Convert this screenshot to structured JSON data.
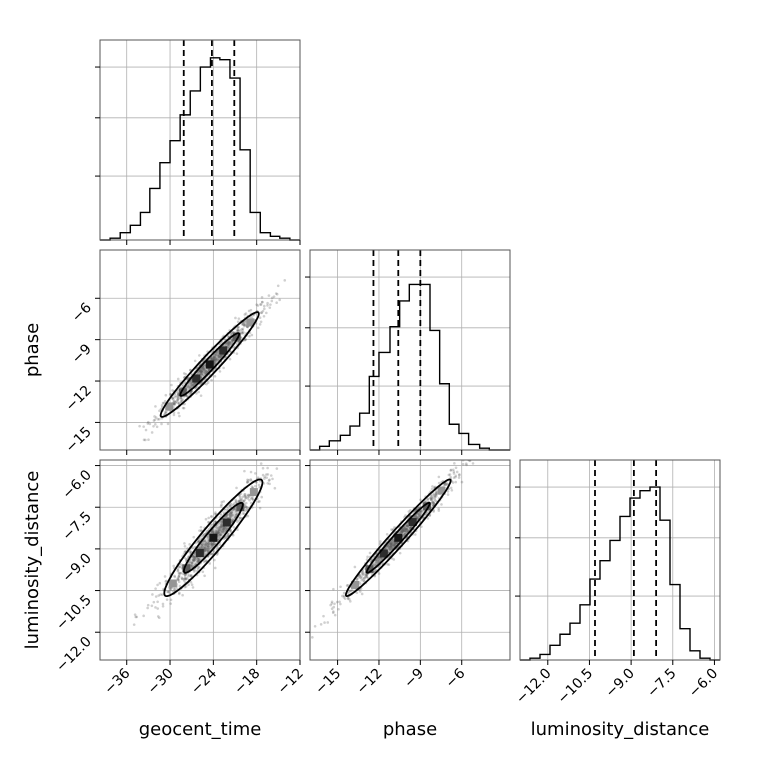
{
  "chart_data": {
    "type": "corner",
    "parameters": [
      "geocent_time",
      "phase",
      "luminosity_distance"
    ],
    "xlabels": [
      "geocent_time",
      "phase",
      "luminosity_distance"
    ],
    "ylabels": [
      "",
      "phase",
      "luminosity_distance"
    ],
    "ranges": {
      "geocent_time": [
        -39.7,
        -12.0
      ],
      "phase": [
        -17.0,
        -2.5
      ],
      "luminosity_distance": [
        -13.0,
        -5.8
      ]
    },
    "ticks": {
      "geocent_time": [
        -36,
        -30,
        -24,
        -18,
        -12
      ],
      "phase": [
        -15,
        -12,
        -9,
        -6
      ],
      "luminosity_distance": [
        -12.0,
        -10.5,
        -9.0,
        -7.5,
        -6.0
      ]
    },
    "tick_labels": {
      "geocent_time": [
        "−36",
        "−30",
        "−24",
        "−18",
        "−12"
      ],
      "phase": [
        "−15",
        "−12",
        "−9",
        "−6"
      ],
      "luminosity_distance": [
        "−12.0",
        "−10.5",
        "−9.0",
        "−7.5",
        "−6.0"
      ]
    },
    "quantiles": {
      "geocent_time": [
        -28.1,
        -24.2,
        -21.1
      ],
      "phase": [
        -12.4,
        -10.6,
        -9.0
      ],
      "luminosity_distance": [
        -10.3,
        -8.9,
        -8.1
      ]
    },
    "histograms": {
      "geocent_time": {
        "edges": [
          -39.7,
          -38.3,
          -36.9,
          -35.5,
          -34.1,
          -32.8,
          -31.4,
          -30.0,
          -28.6,
          -27.2,
          -25.8,
          -24.4,
          -23.1,
          -21.7,
          -20.3,
          -18.9,
          -17.5,
          -16.1,
          -14.8,
          -13.4,
          -12.0
        ],
        "counts": [
          0.0,
          0.01,
          0.04,
          0.08,
          0.15,
          0.28,
          0.42,
          0.54,
          0.68,
          0.81,
          0.94,
          0.99,
          0.98,
          0.88,
          0.49,
          0.15,
          0.04,
          0.02,
          0.01,
          0.0
        ]
      },
      "phase": {
        "edges": [
          -17.0,
          -16.3,
          -15.6,
          -14.8,
          -14.1,
          -13.4,
          -12.7,
          -12.0,
          -11.2,
          -10.5,
          -9.8,
          -9.1,
          -8.3,
          -7.6,
          -6.9,
          -6.2,
          -5.5,
          -4.7,
          -4.0,
          -3.3,
          -2.5
        ],
        "counts": [
          0.0,
          0.02,
          0.05,
          0.08,
          0.13,
          0.2,
          0.4,
          0.53,
          0.67,
          0.81,
          0.9,
          0.9,
          0.65,
          0.36,
          0.14,
          0.09,
          0.03,
          0.01,
          0.0,
          0.0
        ]
      },
      "luminosity_distance": {
        "edges": [
          -13.0,
          -12.64,
          -12.28,
          -11.92,
          -11.56,
          -11.2,
          -10.84,
          -10.48,
          -10.12,
          -9.76,
          -9.4,
          -9.04,
          -8.68,
          -8.32,
          -7.96,
          -7.6,
          -7.24,
          -6.88,
          -6.52,
          -6.16,
          -5.8
        ],
        "counts": [
          0.0,
          0.01,
          0.03,
          0.08,
          0.14,
          0.2,
          0.3,
          0.44,
          0.54,
          0.65,
          0.78,
          0.88,
          0.92,
          0.94,
          0.76,
          0.41,
          0.17,
          0.05,
          0.01,
          0.0
        ]
      }
    },
    "contours_2d": {
      "phase_vs_geocent_time": {
        "center": [
          -24.5,
          -10.8
        ],
        "sigma": [
          3.4,
          1.9
        ],
        "correlation": 0.97
      },
      "luminosity_distance_vs_geocent_time": {
        "center": [
          -24.0,
          -8.6
        ],
        "sigma": [
          3.4,
          1.05
        ],
        "correlation": 0.95
      },
      "luminosity_distance_vs_phase": {
        "center": [
          -10.6,
          -8.6
        ],
        "sigma": [
          1.9,
          1.05
        ],
        "correlation": 0.98
      }
    },
    "grid": true
  }
}
